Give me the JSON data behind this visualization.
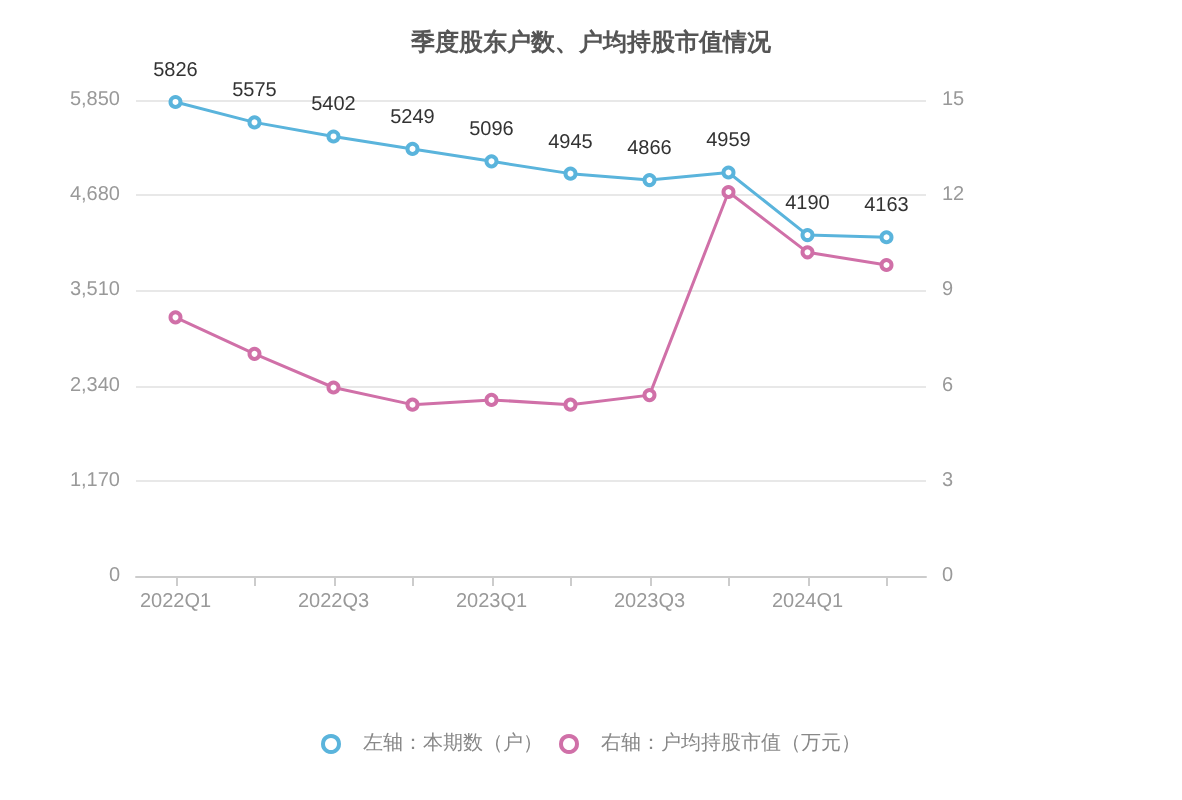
{
  "chart_data": {
    "type": "line",
    "title": "季度股东户数、户均持股市值情况",
    "categories": [
      "2022Q1",
      null,
      "2022Q3",
      null,
      "2023Q1",
      null,
      "2023Q3",
      null,
      "2024Q1",
      null
    ],
    "series": [
      {
        "name": "左轴：本期数（户）",
        "color": "#5ab4dc",
        "values": [
          5826,
          5575,
          5402,
          5249,
          5096,
          4945,
          4866,
          4959,
          4190,
          4163
        ],
        "data_labels": true
      },
      {
        "name": "右轴：户均持股市值（万元）",
        "color": "#d070a8",
        "axis": "y2",
        "values": [
          8.15,
          7.0,
          5.94,
          5.4,
          5.55,
          5.4,
          5.7,
          12.1,
          10.2,
          9.8
        ]
      }
    ],
    "ylim": [
      0,
      5850
    ],
    "yticks": [
      0,
      {
        "value": 1170,
        "label": "1,170"
      },
      {
        "value": 2340,
        "label": "2,340"
      },
      {
        "value": 3510,
        "label": "3,510"
      },
      {
        "value": 4680,
        "label": "4,680"
      },
      {
        "value": 5850,
        "label": "5,850"
      }
    ],
    "y2lim": [
      0,
      15
    ],
    "y2ticks": [
      0,
      3,
      6,
      9,
      12,
      15
    ],
    "grid": "y",
    "legend": "bottom",
    "marker": "circle",
    "line_style": "solid"
  }
}
